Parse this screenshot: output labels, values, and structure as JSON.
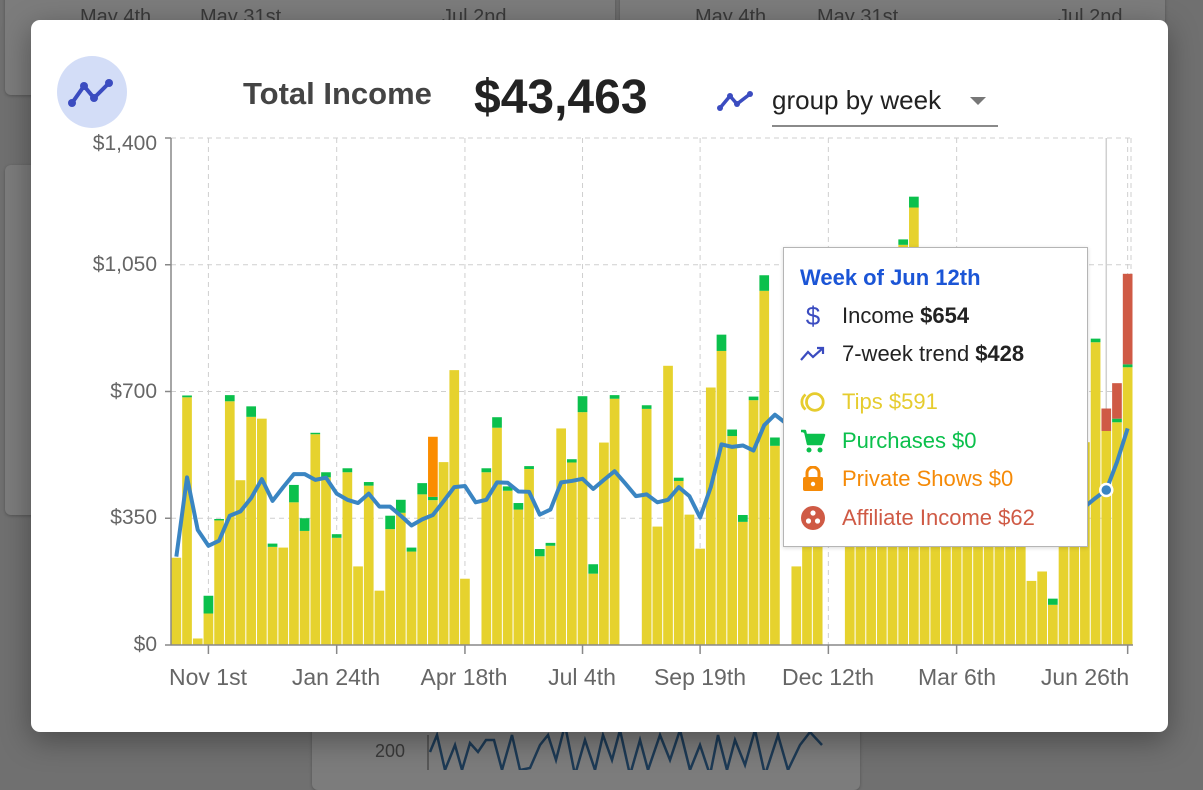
{
  "background": {
    "left_axis_labels": [
      "May 4th",
      "May 31st",
      "Jul 2nd"
    ],
    "right_axis_labels": [
      "May 4th",
      "May 31st",
      "Jul 2nd"
    ],
    "bottom_tick": "200"
  },
  "header": {
    "title": "Total Income",
    "total": "$43,463",
    "group_select": {
      "value": "group by week"
    }
  },
  "tooltip": {
    "title": "Week of Jun 12th",
    "income_label": "Income",
    "income_value": "$654",
    "trend_label": "7-week trend",
    "trend_value": "$428",
    "tips": "Tips $591",
    "purchases": "Purchases $0",
    "private_shows": "Private Shows $0",
    "affiliate": "Affiliate Income $62"
  },
  "colors": {
    "tips": "#e6d22e",
    "purchases": "#0bc04c",
    "private_shows": "#fb8c00",
    "affiliate": "#cf5a45",
    "trend": "#3a85c2",
    "title_blue": "#1b55d6",
    "icon_indigo": "#3b4cc0"
  },
  "chart_data": {
    "type": "bar",
    "stacked": true,
    "grouping": "week",
    "yticks": [
      "$0",
      "$350",
      "$700",
      "$1,050",
      "$1,400"
    ],
    "ytick_values": [
      0,
      350,
      700,
      1050,
      1400
    ],
    "ylim": [
      0,
      1400
    ],
    "xticks": [
      {
        "label": "Nov 1st",
        "week": 4
      },
      {
        "label": "Jan 24th",
        "week": 16
      },
      {
        "label": "Apr 18th",
        "week": 28
      },
      {
        "label": "Jul 4th",
        "week": 39
      },
      {
        "label": "Sep 19th",
        "week": 50
      },
      {
        "label": "Dec 12th",
        "week": 62
      },
      {
        "label": "Mar 6th",
        "week": 74
      },
      {
        "label": "Jun 26th",
        "week": 90
      }
    ],
    "grid": true,
    "highlighted_week": 88,
    "series": [
      {
        "name": "Tips",
        "color": "#e6d22e",
        "values": [
          241,
          684,
          18,
          87,
          344,
          673,
          455,
          630,
          625,
          271,
          269,
          394,
          315,
          582,
          463,
          296,
          477,
          217,
          440,
          150,
          320,
          365,
          258,
          416,
          400,
          505,
          759,
          183,
          0,
          477,
          600,
          426,
          374,
          486,
          245,
          274,
          598,
          504,
          643,
          197,
          559,
          680,
          0,
          0,
          652,
          327,
          771,
          453,
          360,
          266,
          711,
          812,
          577,
          340,
          676,
          978,
          550,
          0,
          217,
          520,
          540,
          0,
          0,
          600,
          640,
          700,
          680,
          760,
          1105,
          1208,
          700,
          650,
          620,
          680,
          590,
          640,
          700,
          600,
          650,
          560,
          177,
          203,
          111,
          480,
          520,
          560,
          836,
          591,
          615,
          767
        ]
      },
      {
        "name": "Purchases",
        "color": "#0bc04c",
        "values": [
          0,
          5,
          0,
          49,
          4,
          17,
          0,
          29,
          0,
          9,
          0,
          48,
          35,
          4,
          14,
          10,
          11,
          0,
          10,
          0,
          37,
          36,
          11,
          31,
          9,
          0,
          0,
          0,
          0,
          11,
          29,
          12,
          18,
          8,
          20,
          8,
          0,
          9,
          44,
          26,
          0,
          10,
          0,
          0,
          10,
          0,
          0,
          9,
          0,
          0,
          0,
          45,
          18,
          19,
          10,
          43,
          23,
          0,
          0,
          0,
          0,
          0,
          0,
          0,
          0,
          0,
          0,
          0,
          15,
          30,
          0,
          0,
          0,
          0,
          0,
          0,
          0,
          0,
          0,
          0,
          0,
          0,
          17,
          0,
          0,
          0,
          10,
          0,
          10,
          8
        ]
      },
      {
        "name": "Private Shows",
        "color": "#fb8c00",
        "values": [
          0,
          0,
          0,
          0,
          0,
          0,
          0,
          0,
          0,
          0,
          0,
          0,
          0,
          0,
          0,
          0,
          0,
          0,
          0,
          0,
          0,
          0,
          0,
          0,
          166,
          0,
          0,
          0,
          0,
          0,
          0,
          0,
          0,
          0,
          0,
          0,
          0,
          0,
          0,
          0,
          0,
          0,
          0,
          0,
          0,
          0,
          0,
          0,
          0,
          0,
          0,
          0,
          0,
          0,
          0,
          0,
          0,
          0,
          0,
          0,
          0,
          0,
          0,
          0,
          0,
          0,
          0,
          0,
          0,
          0,
          0,
          0,
          0,
          0,
          0,
          0,
          0,
          0,
          0,
          0,
          0,
          0,
          0,
          0,
          0,
          0,
          0,
          0,
          0,
          0
        ]
      },
      {
        "name": "Affiliate Income",
        "color": "#cf5a45",
        "values": [
          0,
          0,
          0,
          0,
          0,
          0,
          0,
          0,
          0,
          0,
          0,
          0,
          0,
          0,
          0,
          0,
          0,
          0,
          0,
          0,
          0,
          0,
          0,
          0,
          0,
          0,
          0,
          0,
          0,
          0,
          0,
          0,
          0,
          0,
          0,
          0,
          0,
          0,
          0,
          0,
          0,
          0,
          0,
          0,
          0,
          0,
          0,
          0,
          0,
          0,
          0,
          0,
          0,
          0,
          0,
          0,
          0,
          0,
          0,
          0,
          0,
          0,
          0,
          0,
          0,
          0,
          0,
          0,
          0,
          0,
          0,
          0,
          0,
          0,
          0,
          0,
          0,
          0,
          0,
          0,
          0,
          0,
          0,
          0,
          0,
          0,
          0,
          62,
          98,
          250
        ]
      }
    ],
    "trend": {
      "name": "7-week trend",
      "color": "#3a85c2",
      "values": [
        244,
        463,
        318,
        274,
        288,
        357,
        369,
        406,
        458,
        398,
        436,
        472,
        472,
        456,
        462,
        418,
        401,
        392,
        418,
        382,
        382,
        357,
        330,
        347,
        359,
        397,
        436,
        439,
        394,
        401,
        449,
        448,
        424,
        423,
        360,
        374,
        449,
        453,
        459,
        431,
        456,
        480,
        446,
        411,
        416,
        394,
        401,
        436,
        411,
        352,
        436,
        554,
        547,
        551,
        537,
        607,
        636,
        613,
        600,
        590,
        560,
        520,
        500,
        520,
        560,
        600,
        640,
        680,
        720,
        760,
        780,
        770,
        760,
        740,
        720,
        700,
        680,
        640,
        600,
        560,
        510,
        470,
        430,
        400,
        390,
        382,
        406,
        428,
        505,
        598
      ]
    }
  }
}
